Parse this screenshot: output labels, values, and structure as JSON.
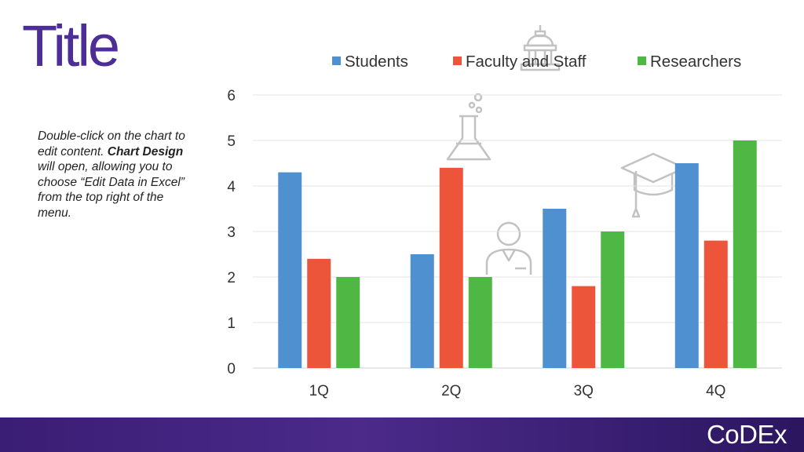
{
  "slide": {
    "title": "Title",
    "title_color": "#4d2d97",
    "instructions": {
      "part1": "Double-click on the chart to edit content. ",
      "bold": "Chart Design",
      "part2": " will open, allowing you to choose “Edit Data in Excel” from the top right of the menu."
    }
  },
  "logo": {
    "text": "CoDEx"
  },
  "icons": [
    "capitol-building-icon",
    "flask-icon",
    "graduation-cap-icon",
    "person-with-badge-icon"
  ],
  "chart_data": {
    "type": "bar",
    "categories": [
      "1Q",
      "2Q",
      "3Q",
      "4Q"
    ],
    "series": [
      {
        "name": "Students",
        "color": "#4e90d0",
        "values": [
          4.3,
          2.5,
          3.5,
          4.5
        ]
      },
      {
        "name": "Faculty and Staff",
        "color": "#ed553b",
        "values": [
          2.4,
          4.4,
          1.8,
          2.8
        ]
      },
      {
        "name": "Researchers",
        "color": "#4fb845",
        "values": [
          2,
          2,
          3,
          5
        ]
      }
    ],
    "title": "",
    "xlabel": "",
    "ylabel": "",
    "ylim": [
      0,
      6
    ],
    "yticks": [
      0,
      1,
      2,
      3,
      4,
      5,
      6
    ],
    "grid": true,
    "legend": "top"
  }
}
